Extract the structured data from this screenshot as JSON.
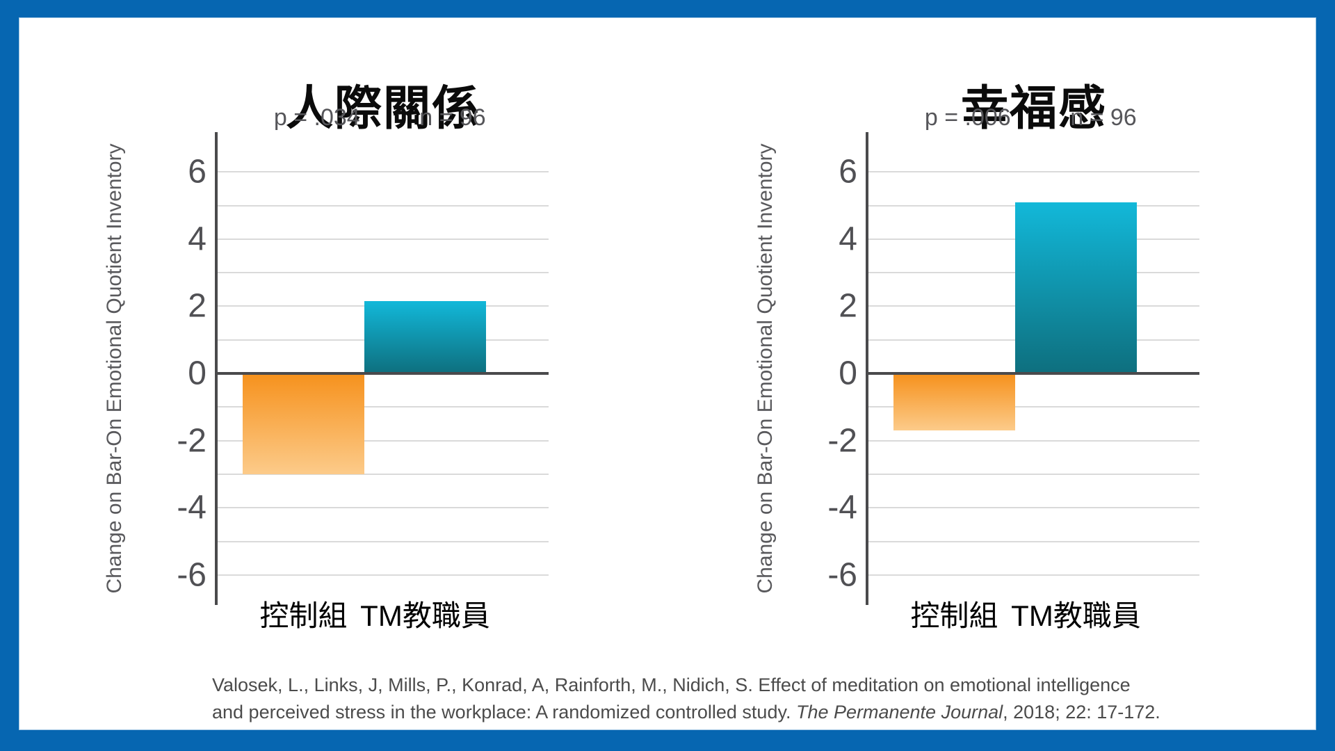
{
  "frame": {
    "border_color": "#0666b1",
    "panel_color": "#ffffff"
  },
  "colors": {
    "orange_top": "#f6921e",
    "orange_bottom": "#fccb8a",
    "teal_top": "#12b8d9",
    "teal_bottom": "#0e6f7e",
    "axis": "#4a4a4c",
    "grid": "#dadada",
    "text_gray": "#56565a"
  },
  "chart_data": [
    {
      "type": "bar",
      "title": "人際關係",
      "annotations": {
        "p": "p = .034",
        "n": "n = 96"
      },
      "ylabel": "Change on Bar-On Emotional Quotient Inventory",
      "xlabel": "",
      "categories": [
        "控制組",
        "TM教職員"
      ],
      "values": [
        -3.0,
        2.15
      ],
      "bar_color_keys": [
        "orange",
        "teal"
      ],
      "ylim": [
        -7,
        7
      ],
      "gridline_range": [
        -6,
        6
      ],
      "gridline_step": 1,
      "tick_values": [
        6,
        4,
        2,
        0,
        -2,
        -4,
        -6
      ],
      "grid": "on",
      "legend": "none"
    },
    {
      "type": "bar",
      "title": "幸福感",
      "annotations": {
        "p": "p = .006",
        "n": "n = 96"
      },
      "ylabel": "Change on Bar-On Emotional Quotient Inventory",
      "xlabel": "",
      "categories": [
        "控制組",
        "TM教職員"
      ],
      "values": [
        -1.7,
        5.1
      ],
      "bar_color_keys": [
        "orange",
        "teal"
      ],
      "ylim": [
        -7,
        7
      ],
      "gridline_range": [
        -6,
        6
      ],
      "gridline_step": 1,
      "tick_values": [
        6,
        4,
        2,
        0,
        -2,
        -4,
        -6
      ],
      "grid": "on",
      "legend": "none"
    }
  ],
  "citation": {
    "line1": "Valosek, L., Links, J,  Mills, P., Konrad, A, Rainforth, M., Nidich, S. Effect of meditation on emotional intelligence",
    "line2_pre": "and perceived stress in the workplace: A randomized controlled study. ",
    "line2_italic": "The Permanente Journal",
    "line2_post": ", 2018; 22: 17-172."
  }
}
